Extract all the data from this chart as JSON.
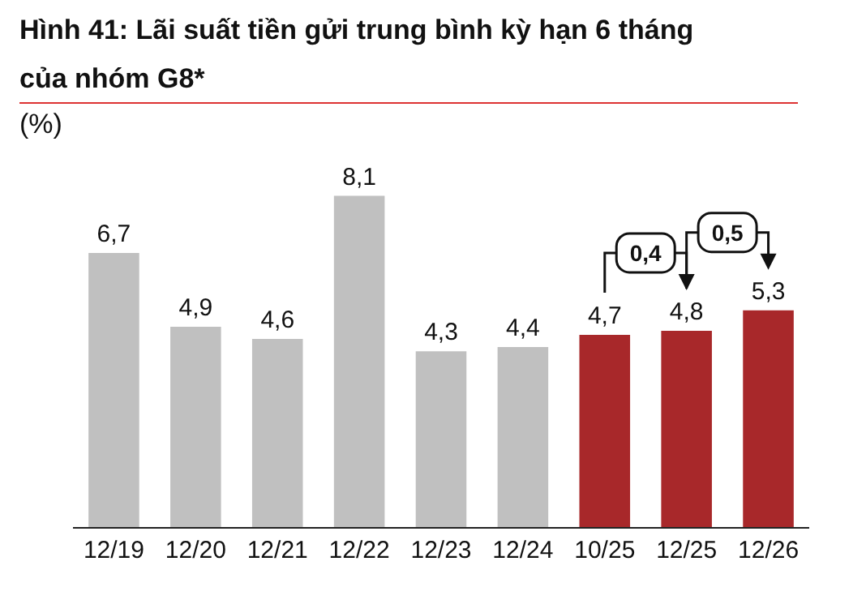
{
  "chart_data": {
    "type": "bar",
    "title": "Hình 41: Lãi suất tiền gửi trung bình kỳ hạn 6 tháng của nhóm G8*",
    "ylabel": "(%)",
    "categories": [
      "12/19",
      "12/20",
      "12/21",
      "12/22",
      "12/23",
      "12/24",
      "10/25",
      "12/25",
      "12/26"
    ],
    "values": [
      6.7,
      4.9,
      4.6,
      8.1,
      4.3,
      4.4,
      4.7,
      4.8,
      5.3
    ],
    "value_labels": [
      "6,7",
      "4,9",
      "4,6",
      "8,1",
      "4,3",
      "4,4",
      "4,7",
      "4,8",
      "5,3"
    ],
    "colors": [
      "#c0c0c0",
      "#c0c0c0",
      "#c0c0c0",
      "#c0c0c0",
      "#c0c0c0",
      "#c0c0c0",
      "#a8282a",
      "#a8282a",
      "#a8282a"
    ],
    "annotations": [
      "0,4",
      "0,5"
    ]
  }
}
